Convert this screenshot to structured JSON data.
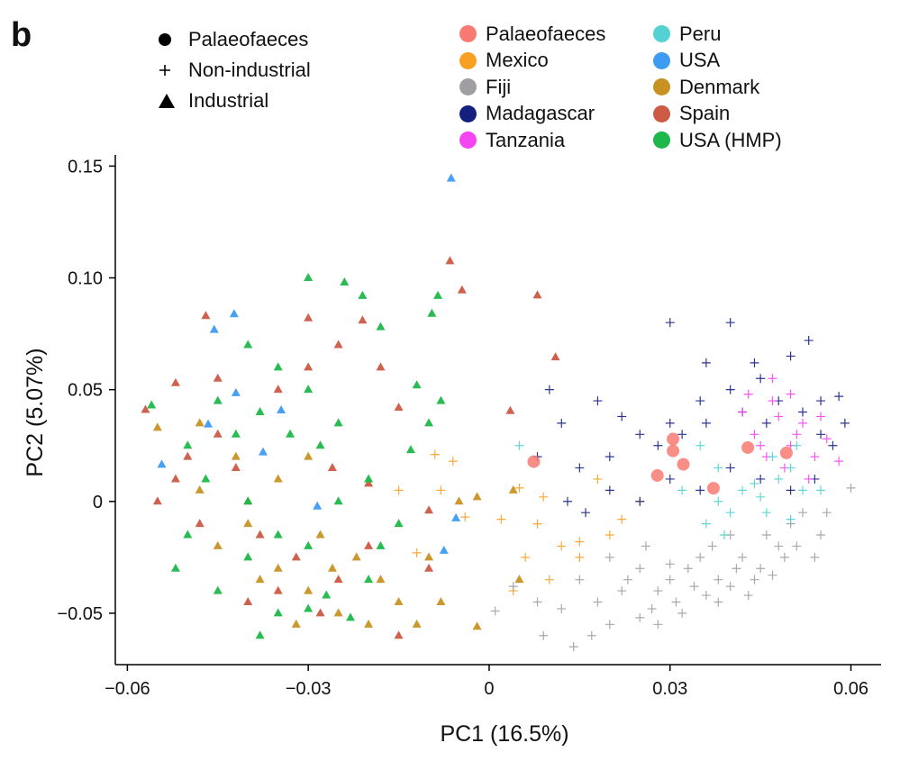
{
  "panel_label": "b",
  "shape_legend": [
    {
      "label": "Palaeofaeces",
      "shape": "circle"
    },
    {
      "label": "Non-industrial",
      "shape": "plus"
    },
    {
      "label": "Industrial",
      "shape": "triangle"
    }
  ],
  "color_legend": [
    {
      "label": "Palaeofaeces",
      "color": "#f87a72"
    },
    {
      "label": "Peru",
      "color": "#52d2d2"
    },
    {
      "label": "Mexico",
      "color": "#f8a024"
    },
    {
      "label": "USA",
      "color": "#3d9bf2"
    },
    {
      "label": "Fiji",
      "color": "#a09ea3"
    },
    {
      "label": "Denmark",
      "color": "#c89223"
    },
    {
      "label": "Madagascar",
      "color": "#14207f"
    },
    {
      "label": "Spain",
      "color": "#cc5a45"
    },
    {
      "label": "Tanzania",
      "color": "#f445f0"
    },
    {
      "label": "USA (HMP)",
      "color": "#1db84a"
    }
  ],
  "chart_data": {
    "type": "scatter",
    "xlabel": "PC1 (16.5%)",
    "ylabel": "PC2 (5.07%)",
    "xlim": [
      -0.062,
      0.065
    ],
    "ylim": [
      -0.073,
      0.155
    ],
    "xticks": [
      -0.06,
      -0.03,
      0,
      0.03,
      0.06
    ],
    "xtick_labels": [
      "−0.06",
      "−0.03",
      "0",
      "0.03",
      "0.06"
    ],
    "yticks": [
      -0.05,
      0,
      0.05,
      0.1,
      0.15
    ],
    "ytick_labels": [
      "−0.05",
      "0",
      "0.05",
      "0.10",
      "0.15"
    ],
    "grid": false,
    "series": [
      {
        "name": "Palaeofaeces",
        "marker": "circle",
        "color": "#f87a72",
        "points": [
          [
            0.0074,
            0.0178
          ],
          [
            0.0305,
            0.0279
          ],
          [
            0.0305,
            0.0226
          ],
          [
            0.0322,
            0.0166
          ],
          [
            0.0279,
            0.0116
          ],
          [
            0.0372,
            0.0059
          ],
          [
            0.0429,
            0.0241
          ],
          [
            0.0493,
            0.0217
          ]
        ]
      },
      {
        "name": "USA",
        "marker": "triangle",
        "color": "#3d9bf2",
        "points": [
          [
            -0.0063,
            0.1445
          ],
          [
            -0.0423,
            0.0838
          ],
          [
            -0.0456,
            0.0768
          ],
          [
            -0.042,
            0.0485
          ],
          [
            -0.0466,
            0.0345
          ],
          [
            -0.0543,
            0.0165
          ],
          [
            -0.0375,
            0.022
          ],
          [
            -0.0075,
            -0.022
          ],
          [
            -0.0055,
            -0.0075
          ],
          [
            -0.0345,
            0.0408
          ],
          [
            -0.0285,
            -0.0022
          ]
        ]
      },
      {
        "name": "Spain",
        "marker": "triangle",
        "color": "#cc5a45",
        "points": [
          [
            -0.0065,
            0.1075
          ],
          [
            -0.0045,
            0.0945
          ],
          [
            0.008,
            0.0922
          ],
          [
            0.011,
            0.0645
          ],
          [
            0.0035,
            0.0405
          ],
          [
            -0.057,
            0.041
          ],
          [
            -0.052,
            0.053
          ],
          [
            -0.047,
            0.083
          ],
          [
            -0.03,
            0.082
          ],
          [
            -0.021,
            0.081
          ],
          [
            -0.018,
            0.06
          ],
          [
            -0.015,
            0.042
          ],
          [
            -0.01,
            -0.004
          ],
          [
            -0.02,
            -0.02
          ],
          [
            -0.025,
            -0.035
          ],
          [
            -0.04,
            -0.045
          ],
          [
            -0.048,
            -0.01
          ],
          [
            -0.055,
            0.0
          ],
          [
            -0.05,
            0.02
          ],
          [
            -0.045,
            0.03
          ],
          [
            -0.035,
            0.05
          ],
          [
            -0.03,
            0.06
          ],
          [
            -0.025,
            0.07
          ],
          [
            -0.028,
            -0.05
          ],
          [
            -0.035,
            -0.04
          ],
          [
            -0.01,
            -0.03
          ],
          [
            -0.015,
            -0.06
          ],
          [
            -0.042,
            0.015
          ],
          [
            -0.038,
            -0.015
          ],
          [
            -0.032,
            -0.025
          ],
          [
            -0.045,
            0.055
          ],
          [
            -0.026,
            0.015
          ],
          [
            -0.02,
            0.008
          ],
          [
            -0.052,
            0.01
          ]
        ]
      },
      {
        "name": "Denmark",
        "marker": "triangle",
        "color": "#c89223",
        "points": [
          [
            -0.002,
            -0.056
          ],
          [
            0.004,
            0.005
          ],
          [
            0.005,
            -0.035
          ],
          [
            -0.008,
            -0.045
          ],
          [
            -0.055,
            0.033
          ],
          [
            -0.048,
            0.005
          ],
          [
            -0.04,
            -0.01
          ],
          [
            -0.035,
            -0.03
          ],
          [
            -0.03,
            -0.04
          ],
          [
            -0.025,
            -0.05
          ],
          [
            -0.02,
            -0.055
          ],
          [
            -0.015,
            -0.045
          ],
          [
            -0.01,
            -0.025
          ],
          [
            -0.005,
            0.0
          ],
          [
            -0.002,
            0.002
          ],
          [
            -0.035,
            0.01
          ],
          [
            -0.03,
            0.02
          ],
          [
            -0.04,
            0.0
          ],
          [
            -0.045,
            -0.02
          ],
          [
            -0.038,
            -0.035
          ],
          [
            -0.028,
            -0.015
          ],
          [
            -0.022,
            -0.025
          ],
          [
            -0.018,
            -0.035
          ],
          [
            -0.012,
            -0.055
          ],
          [
            -0.032,
            -0.055
          ],
          [
            -0.026,
            -0.03
          ],
          [
            -0.042,
            0.02
          ],
          [
            -0.048,
            0.035
          ]
        ]
      },
      {
        "name": "USA (HMP)",
        "marker": "triangle",
        "color": "#1db84a",
        "points": [
          [
            -0.03,
            0.1
          ],
          [
            -0.024,
            0.098
          ],
          [
            -0.021,
            0.092
          ],
          [
            -0.0085,
            0.092
          ],
          [
            -0.0095,
            0.084
          ],
          [
            -0.018,
            0.078
          ],
          [
            -0.056,
            0.043
          ],
          [
            -0.05,
            0.025
          ],
          [
            -0.04,
            0.0
          ],
          [
            -0.03,
            -0.02
          ],
          [
            -0.035,
            -0.05
          ],
          [
            -0.038,
            -0.06
          ],
          [
            -0.03,
            -0.048
          ],
          [
            -0.02,
            -0.035
          ],
          [
            -0.015,
            -0.01
          ],
          [
            -0.01,
            0.035
          ],
          [
            -0.012,
            0.052
          ],
          [
            -0.025,
            0.035
          ],
          [
            -0.03,
            0.05
          ],
          [
            -0.035,
            0.06
          ],
          [
            -0.04,
            0.07
          ],
          [
            -0.045,
            0.045
          ],
          [
            -0.05,
            -0.015
          ],
          [
            -0.052,
            -0.03
          ],
          [
            -0.045,
            -0.04
          ],
          [
            -0.04,
            -0.025
          ],
          [
            -0.035,
            -0.015
          ],
          [
            -0.025,
            0.0
          ],
          [
            -0.02,
            0.01
          ],
          [
            -0.028,
            0.025
          ],
          [
            -0.033,
            0.03
          ],
          [
            -0.038,
            0.04
          ],
          [
            -0.042,
            0.03
          ],
          [
            -0.047,
            0.01
          ],
          [
            -0.027,
            -0.042
          ],
          [
            -0.023,
            -0.052
          ],
          [
            -0.018,
            -0.02
          ],
          [
            -0.013,
            0.023
          ],
          [
            -0.008,
            0.045
          ]
        ]
      },
      {
        "name": "Mexico",
        "marker": "plus",
        "color": "#f8a024",
        "points": [
          [
            -0.009,
            0.021
          ],
          [
            -0.006,
            0.018
          ],
          [
            -0.004,
            -0.007
          ],
          [
            -0.012,
            -0.023
          ],
          [
            -0.015,
            0.005
          ],
          [
            -0.008,
            0.005
          ],
          [
            0.002,
            -0.008
          ],
          [
            0.005,
            0.006
          ],
          [
            0.009,
            0.002
          ],
          [
            0.008,
            -0.01
          ],
          [
            0.012,
            -0.02
          ],
          [
            0.015,
            -0.018
          ],
          [
            0.02,
            -0.015
          ],
          [
            0.025,
            0.0
          ],
          [
            0.018,
            0.01
          ],
          [
            0.006,
            -0.025
          ],
          [
            0.01,
            -0.035
          ],
          [
            0.015,
            -0.025
          ],
          [
            0.004,
            -0.04
          ],
          [
            0.022,
            -0.008
          ]
        ]
      },
      {
        "name": "Fiji",
        "marker": "plus",
        "color": "#a09ea3",
        "points": [
          [
            0.001,
            -0.049
          ],
          [
            0.004,
            -0.038
          ],
          [
            0.008,
            -0.045
          ],
          [
            0.012,
            -0.048
          ],
          [
            0.015,
            -0.035
          ],
          [
            0.018,
            -0.045
          ],
          [
            0.02,
            -0.055
          ],
          [
            0.022,
            -0.04
          ],
          [
            0.025,
            -0.03
          ],
          [
            0.028,
            -0.04
          ],
          [
            0.03,
            -0.035
          ],
          [
            0.032,
            -0.05
          ],
          [
            0.035,
            -0.025
          ],
          [
            0.038,
            -0.035
          ],
          [
            0.04,
            -0.015
          ],
          [
            0.042,
            -0.025
          ],
          [
            0.045,
            -0.03
          ],
          [
            0.048,
            -0.02
          ],
          [
            0.05,
            -0.01
          ],
          [
            0.052,
            -0.005
          ],
          [
            0.055,
            -0.015
          ],
          [
            0.06,
            0.006
          ],
          [
            0.025,
            -0.052
          ],
          [
            0.028,
            -0.055
          ],
          [
            0.031,
            -0.045
          ],
          [
            0.036,
            -0.042
          ],
          [
            0.04,
            -0.038
          ],
          [
            0.044,
            -0.035
          ],
          [
            0.017,
            -0.06
          ],
          [
            0.014,
            -0.065
          ],
          [
            0.009,
            -0.06
          ],
          [
            0.033,
            -0.03
          ],
          [
            0.037,
            -0.02
          ],
          [
            0.041,
            -0.03
          ],
          [
            0.046,
            -0.015
          ],
          [
            0.049,
            -0.025
          ],
          [
            0.026,
            -0.02
          ],
          [
            0.023,
            -0.035
          ],
          [
            0.02,
            -0.025
          ],
          [
            0.034,
            -0.038
          ],
          [
            0.038,
            -0.045
          ],
          [
            0.043,
            -0.042
          ],
          [
            0.047,
            -0.033
          ],
          [
            0.051,
            -0.02
          ],
          [
            0.054,
            -0.025
          ],
          [
            0.056,
            -0.005
          ],
          [
            0.027,
            -0.048
          ],
          [
            0.03,
            -0.028
          ]
        ]
      },
      {
        "name": "Madagascar",
        "marker": "plus",
        "color": "#14207f",
        "points": [
          [
            0.03,
            0.08
          ],
          [
            0.04,
            0.08
          ],
          [
            0.05,
            0.065
          ],
          [
            0.053,
            0.072
          ],
          [
            0.055,
            0.045
          ],
          [
            0.058,
            0.047
          ],
          [
            0.059,
            0.035
          ],
          [
            0.045,
            0.055
          ],
          [
            0.04,
            0.05
          ],
          [
            0.035,
            0.045
          ],
          [
            0.03,
            0.035
          ],
          [
            0.025,
            0.03
          ],
          [
            0.02,
            0.02
          ],
          [
            0.015,
            0.015
          ],
          [
            0.012,
            0.035
          ],
          [
            0.018,
            0.045
          ],
          [
            0.022,
            0.038
          ],
          [
            0.028,
            0.025
          ],
          [
            0.032,
            0.03
          ],
          [
            0.036,
            0.035
          ],
          [
            0.042,
            0.04
          ],
          [
            0.046,
            0.035
          ],
          [
            0.048,
            0.045
          ],
          [
            0.052,
            0.04
          ],
          [
            0.055,
            0.03
          ],
          [
            0.057,
            0.025
          ],
          [
            0.054,
            0.01
          ],
          [
            0.05,
            0.005
          ],
          [
            0.045,
            0.01
          ],
          [
            0.04,
            0.015
          ],
          [
            0.035,
            0.005
          ],
          [
            0.03,
            0.01
          ],
          [
            0.025,
            0.0
          ],
          [
            0.02,
            0.005
          ],
          [
            0.016,
            -0.005
          ],
          [
            0.013,
            0.0
          ],
          [
            0.01,
            0.05
          ],
          [
            0.008,
            0.02
          ],
          [
            0.036,
            0.062
          ],
          [
            0.044,
            0.062
          ]
        ]
      },
      {
        "name": "Tanzania",
        "marker": "plus",
        "color": "#f445f0",
        "points": [
          [
            0.043,
            0.048
          ],
          [
            0.047,
            0.045
          ],
          [
            0.05,
            0.048
          ],
          [
            0.052,
            0.035
          ],
          [
            0.048,
            0.038
          ],
          [
            0.044,
            0.03
          ],
          [
            0.05,
            0.025
          ],
          [
            0.054,
            0.02
          ],
          [
            0.056,
            0.028
          ],
          [
            0.058,
            0.018
          ],
          [
            0.053,
            0.01
          ],
          [
            0.046,
            0.02
          ],
          [
            0.042,
            0.04
          ],
          [
            0.047,
            0.055
          ],
          [
            0.051,
            0.03
          ],
          [
            0.049,
            0.015
          ],
          [
            0.055,
            0.038
          ],
          [
            0.045,
            0.025
          ]
        ]
      },
      {
        "name": "Peru",
        "marker": "plus",
        "color": "#52d2d2",
        "points": [
          [
            0.005,
            0.025
          ],
          [
            0.035,
            0.025
          ],
          [
            0.038,
            0.015
          ],
          [
            0.042,
            0.005
          ],
          [
            0.045,
            0.002
          ],
          [
            0.048,
            0.01
          ],
          [
            0.05,
            0.015
          ],
          [
            0.052,
            0.005
          ],
          [
            0.055,
            0.005
          ],
          [
            0.038,
            0.0
          ],
          [
            0.04,
            -0.005
          ],
          [
            0.044,
            0.008
          ],
          [
            0.032,
            0.005
          ],
          [
            0.036,
            -0.01
          ],
          [
            0.039,
            -0.015
          ],
          [
            0.046,
            -0.005
          ],
          [
            0.05,
            -0.008
          ],
          [
            0.047,
            0.02
          ],
          [
            0.051,
            0.025
          ]
        ]
      }
    ]
  }
}
